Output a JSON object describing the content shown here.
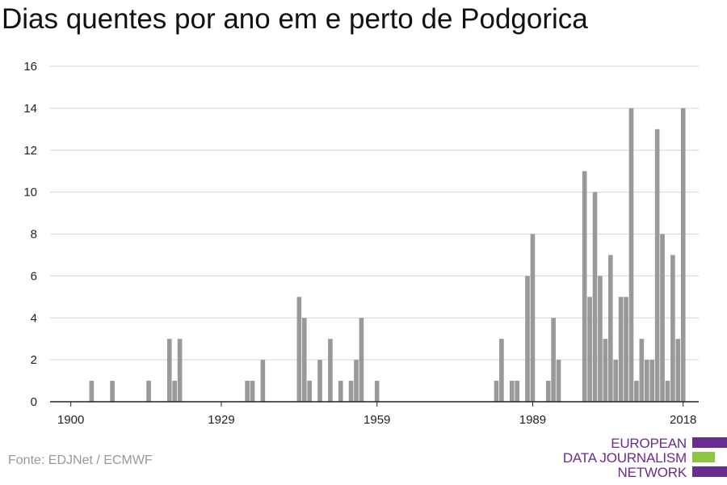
{
  "chart_data": {
    "type": "bar",
    "title": "Dias quentes por ano em e perto de Podgorica",
    "xlabel": "",
    "ylabel": "",
    "xlim": [
      1896,
      2021
    ],
    "ylim": [
      0,
      16
    ],
    "x_ticks": [
      "1900",
      "1929",
      "1959",
      "1989",
      "2018"
    ],
    "y_ticks": [
      "0",
      "2",
      "4",
      "6",
      "8",
      "10",
      "12",
      "14",
      "16"
    ],
    "grid": true,
    "bar_color": "#999999",
    "x": [
      1904,
      1908,
      1915,
      1919,
      1920,
      1921,
      1934,
      1935,
      1937,
      1944,
      1945,
      1946,
      1948,
      1950,
      1952,
      1954,
      1955,
      1956,
      1959,
      1982,
      1983,
      1985,
      1986,
      1988,
      1989,
      1992,
      1993,
      1994,
      1999,
      2000,
      2001,
      2002,
      2003,
      2004,
      2005,
      2006,
      2007,
      2008,
      2009,
      2010,
      2011,
      2012,
      2013,
      2014,
      2015,
      2016,
      2017,
      2018
    ],
    "values": [
      1,
      1,
      1,
      3,
      1,
      3,
      1,
      1,
      2,
      5,
      4,
      1,
      2,
      3,
      1,
      1,
      2,
      4,
      1,
      1,
      3,
      1,
      1,
      6,
      8,
      1,
      4,
      2,
      11,
      5,
      10,
      6,
      3,
      7,
      2,
      5,
      5,
      14,
      1,
      3,
      2,
      2,
      13,
      8,
      1,
      7,
      3,
      14
    ]
  },
  "source": "Fonte: EDJNet / ECMWF",
  "logo": {
    "lines": [
      "EUROPEAN",
      "DATA JOURNALISM",
      "NETWORK"
    ],
    "purple": "#6b2c91",
    "green": "#8dc63f"
  }
}
